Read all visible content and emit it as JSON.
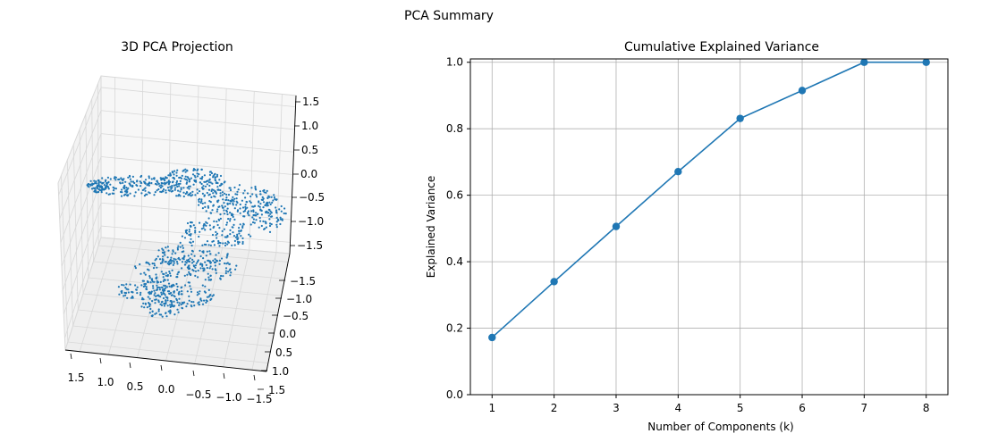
{
  "figure": {
    "suptitle": "PCA Summary"
  },
  "chart_data": [
    {
      "type": "scatter",
      "projection": "3d",
      "title": "3D PCA Projection",
      "color": "#1f77b4",
      "x_ticks": [
        "1.5",
        "1.0",
        "0.5",
        "0.0",
        "−0.5",
        "−1.0",
        "−1.5"
      ],
      "y_ticks": [
        "−1.5",
        "−1.0",
        "−0.5",
        "0.0",
        "0.5",
        "1.0",
        "1.5"
      ],
      "z_ticks": [
        "1.5",
        "1.0",
        "0.5",
        "0.0",
        "−0.5",
        "−1.0",
        "−1.5"
      ],
      "grid": true,
      "note": "approximately 1500 points forming a folded 3D manifold (S-curve-like)"
    },
    {
      "type": "line",
      "title": "Cumulative Explained Variance",
      "xlabel": "Number of Components (k)",
      "ylabel": "Explained Variance",
      "x": [
        1,
        2,
        3,
        4,
        5,
        6,
        7,
        8
      ],
      "y": [
        0.172,
        0.34,
        0.506,
        0.671,
        0.831,
        0.915,
        1.0,
        1.0
      ],
      "xlim": [
        0.65,
        8.35
      ],
      "ylim": [
        0,
        1.01
      ],
      "xticks": [
        1,
        2,
        3,
        4,
        5,
        6,
        7,
        8
      ],
      "yticks": [
        "0.0",
        "0.2",
        "0.4",
        "0.6",
        "0.8",
        "1.0"
      ],
      "marker": "circle",
      "color": "#1f77b4",
      "grid": true
    }
  ]
}
